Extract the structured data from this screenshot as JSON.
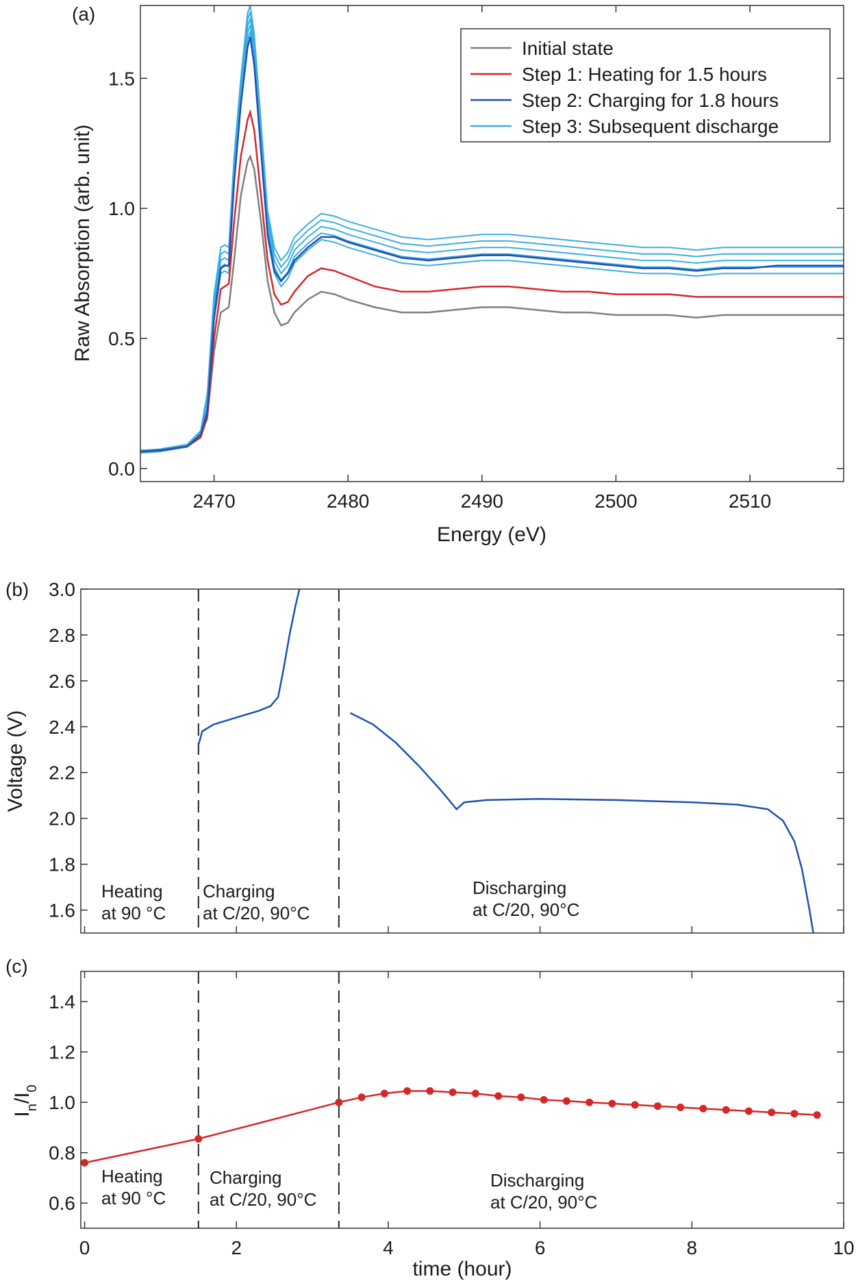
{
  "panels": {
    "a": {
      "label": "(a)"
    },
    "b": {
      "label": "(b)"
    },
    "c": {
      "label": "(c)"
    }
  },
  "chart_data": [
    {
      "id": "a",
      "type": "line",
      "xlabel": "Energy (eV)",
      "ylabel": "Raw Absorption (arb. unit)",
      "xlim": [
        2464.5,
        2517
      ],
      "ylim": [
        -0.05,
        1.78
      ],
      "xticks": [
        2470,
        2480,
        2490,
        2500,
        2510
      ],
      "yticks": [
        0.0,
        0.5,
        1.0,
        1.5
      ],
      "ytick_labels": [
        "0.0",
        "0.5",
        "1.0",
        "1.5"
      ],
      "legend_position": "top-right",
      "grid": false,
      "x": [
        2464.5,
        2466,
        2468,
        2469,
        2469.5,
        2470,
        2470.5,
        2470.8,
        2471.1,
        2471.5,
        2472,
        2472.5,
        2472.7,
        2473,
        2473.5,
        2474,
        2474.5,
        2475,
        2475.5,
        2476,
        2477,
        2478,
        2479,
        2480,
        2482,
        2484,
        2486,
        2488,
        2490,
        2492,
        2494,
        2496,
        2498,
        2500,
        2502,
        2504,
        2506,
        2508,
        2510,
        2512,
        2514,
        2516,
        2517
      ],
      "series": [
        {
          "name": "Initial state",
          "color": "#7f7f7f",
          "values": [
            0.065,
            0.07,
            0.085,
            0.12,
            0.2,
            0.45,
            0.6,
            0.61,
            0.62,
            0.8,
            1.05,
            1.18,
            1.2,
            1.15,
            0.95,
            0.72,
            0.6,
            0.55,
            0.56,
            0.6,
            0.65,
            0.68,
            0.67,
            0.65,
            0.62,
            0.6,
            0.6,
            0.61,
            0.62,
            0.62,
            0.61,
            0.6,
            0.6,
            0.59,
            0.59,
            0.59,
            0.58,
            0.59,
            0.59,
            0.59,
            0.59,
            0.59,
            0.59
          ]
        },
        {
          "name": "Step 1: Heating for 1.5 hours",
          "color": "#d62728",
          "values": [
            0.065,
            0.07,
            0.085,
            0.12,
            0.2,
            0.5,
            0.69,
            0.7,
            0.71,
            0.95,
            1.2,
            1.34,
            1.37,
            1.3,
            1.05,
            0.8,
            0.67,
            0.63,
            0.64,
            0.68,
            0.74,
            0.77,
            0.76,
            0.74,
            0.7,
            0.68,
            0.68,
            0.69,
            0.7,
            0.7,
            0.69,
            0.68,
            0.68,
            0.67,
            0.67,
            0.67,
            0.66,
            0.66,
            0.66,
            0.66,
            0.66,
            0.66,
            0.66
          ]
        },
        {
          "name": "Step 2: Charging for 1.8 hours",
          "color": "#1f4fb4",
          "values": [
            0.065,
            0.07,
            0.085,
            0.13,
            0.22,
            0.58,
            0.77,
            0.78,
            0.78,
            1.1,
            1.4,
            1.62,
            1.66,
            1.55,
            1.22,
            0.9,
            0.76,
            0.72,
            0.75,
            0.8,
            0.85,
            0.89,
            0.89,
            0.87,
            0.84,
            0.81,
            0.8,
            0.81,
            0.82,
            0.82,
            0.81,
            0.8,
            0.79,
            0.78,
            0.77,
            0.77,
            0.76,
            0.77,
            0.77,
            0.78,
            0.78,
            0.78,
            0.78
          ]
        },
        {
          "name": "Step 3: Subsequent discharge",
          "color": "#3aaee0",
          "values": [
            0.065,
            0.07,
            0.088,
            0.14,
            0.24,
            0.62,
            0.8,
            0.81,
            0.8,
            1.15,
            1.45,
            1.7,
            1.73,
            1.62,
            1.28,
            0.94,
            0.8,
            0.75,
            0.78,
            0.84,
            0.89,
            0.93,
            0.92,
            0.9,
            0.87,
            0.84,
            0.83,
            0.84,
            0.85,
            0.85,
            0.84,
            0.83,
            0.82,
            0.81,
            0.8,
            0.8,
            0.79,
            0.8,
            0.8,
            0.8,
            0.8,
            0.8,
            0.8
          ]
        }
      ]
    },
    {
      "id": "b",
      "type": "line",
      "xlabel": "",
      "ylabel": "Voltage (V)",
      "xlim": [
        -0.05,
        10
      ],
      "ylim": [
        1.5,
        3.0
      ],
      "yticks": [
        1.6,
        1.8,
        2.0,
        2.2,
        2.4,
        2.6,
        2.8,
        3.0
      ],
      "ytick_labels": [
        "1.6",
        "1.8",
        "2.0",
        "2.2",
        "2.4",
        "2.6",
        "2.8",
        "3.0"
      ],
      "grid": false,
      "dividers": [
        1.5,
        3.35
      ],
      "series": [
        {
          "name": "",
          "color": "#1f4fb4",
          "segments": [
            {
              "x": [
                1.5,
                1.55,
                1.7,
                1.9,
                2.1,
                2.3,
                2.45,
                2.55,
                2.62,
                2.7,
                2.78,
                2.83
              ],
              "y": [
                2.32,
                2.38,
                2.41,
                2.43,
                2.45,
                2.47,
                2.49,
                2.53,
                2.65,
                2.8,
                2.93,
                3.0
              ]
            },
            {
              "x": [
                3.5,
                3.8,
                4.1,
                4.4,
                4.7,
                4.9,
                5.0,
                5.3,
                6.0,
                7.0,
                8.0,
                8.6,
                9.0,
                9.2,
                9.35,
                9.45,
                9.55,
                9.6
              ],
              "y": [
                2.46,
                2.41,
                2.33,
                2.23,
                2.12,
                2.04,
                2.07,
                2.08,
                2.085,
                2.08,
                2.07,
                2.06,
                2.04,
                1.99,
                1.9,
                1.78,
                1.6,
                1.5
              ]
            }
          ]
        }
      ],
      "annotations": [
        [
          "Heating",
          "at 90 °C"
        ],
        [
          "Charging",
          "at C/20, 90°C"
        ],
        [
          "Discharging",
          "at C/20, 90°C"
        ]
      ]
    },
    {
      "id": "c",
      "type": "line",
      "xlabel": "time (hour)",
      "ylabel": "In/I0",
      "xlim": [
        -0.05,
        10
      ],
      "ylim": [
        0.5,
        1.52
      ],
      "xticks": [
        0,
        2,
        4,
        6,
        8,
        10
      ],
      "yticks": [
        0.6,
        0.8,
        1.0,
        1.2,
        1.4
      ],
      "ytick_labels": [
        "0.6",
        "0.8",
        "1.0",
        "1.2",
        "1.4"
      ],
      "grid": false,
      "dividers": [
        1.5,
        3.35
      ],
      "series": [
        {
          "name": "",
          "color": "#d62728",
          "x": [
            0,
            1.5,
            3.35,
            3.65,
            3.95,
            4.25,
            4.55,
            4.85,
            5.15,
            5.45,
            5.75,
            6.05,
            6.35,
            6.65,
            6.95,
            7.25,
            7.55,
            7.85,
            8.15,
            8.45,
            8.75,
            9.05,
            9.35,
            9.65
          ],
          "values": [
            0.76,
            0.855,
            1.0,
            1.02,
            1.035,
            1.045,
            1.045,
            1.04,
            1.035,
            1.025,
            1.02,
            1.01,
            1.005,
            1.0,
            0.995,
            0.99,
            0.985,
            0.98,
            0.975,
            0.97,
            0.965,
            0.96,
            0.955,
            0.95
          ]
        }
      ],
      "annotations": [
        [
          "Heating",
          "at 90 °C"
        ],
        [
          "Charging",
          "at C/20, 90°C"
        ],
        [
          "Discharging",
          "at C/20, 90°C"
        ]
      ]
    }
  ]
}
